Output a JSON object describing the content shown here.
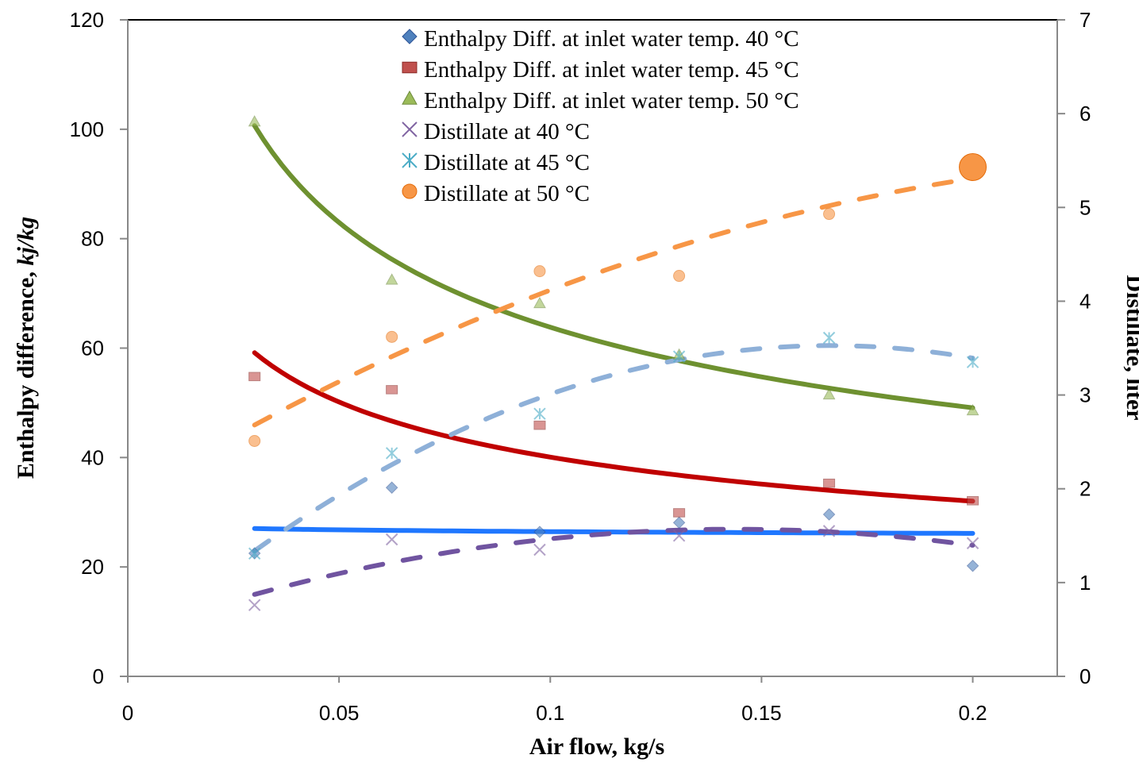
{
  "chart_data": {
    "type": "scatter",
    "title": "",
    "xlabel": "Air flow, kg/s",
    "ylabel_left_main": "Enthalpy difference, ",
    "ylabel_left_unit": "kj/kg",
    "ylabel_right": "Distillate, liter",
    "xlim": [
      0,
      0.22
    ],
    "ylim_left": [
      0,
      120
    ],
    "ylim_right": [
      0,
      7
    ],
    "x_ticks": [
      "0",
      "0.05",
      "0.1",
      "0.15",
      "0.2"
    ],
    "x_tick_values": [
      0,
      0.05,
      0.1,
      0.15,
      0.2
    ],
    "y_left_ticks": [
      "0",
      "20",
      "40",
      "60",
      "80",
      "100",
      "120"
    ],
    "y_right_ticks": [
      "0",
      "1",
      "2",
      "3",
      "4",
      "5",
      "6",
      "7"
    ],
    "grid": false,
    "legend_placement": "top-center",
    "x": [
      0.03,
      0.0625,
      0.0975,
      0.1305,
      0.166,
      0.2
    ],
    "series": [
      {
        "name": "Enthalpy Diff. at inlet water temp. 40 °C",
        "axis": "left",
        "marker": "diamond",
        "color": "#4f81bd",
        "trend": "power",
        "trend_color": "#1f77ff",
        "trend_dash": false,
        "values": [
          22.5,
          34.5,
          26.4,
          28.1,
          29.6,
          20.2
        ]
      },
      {
        "name": "Enthalpy Diff. at inlet water temp. 45 °C",
        "axis": "left",
        "marker": "square",
        "color": "#c0504d",
        "trend": "power",
        "trend_color": "#c00000",
        "trend_dash": false,
        "values": [
          54.8,
          52.4,
          45.9,
          29.9,
          35.3,
          32.1
        ]
      },
      {
        "name": "Enthalpy Diff. at inlet water temp. 50 °C",
        "axis": "left",
        "marker": "triangle",
        "color": "#9bbb59",
        "trend": "power",
        "trend_color": "#6e9130",
        "trend_dash": false,
        "values": [
          101.4,
          72.5,
          68.2,
          58.8,
          51.5,
          48.6
        ]
      },
      {
        "name": "Distillate at 40 °C",
        "axis": "right",
        "marker": "x",
        "color": "#8064a2",
        "trend": "polynomial",
        "trend_color": "#7054a0",
        "trend_dash": true,
        "values": [
          0.76,
          1.46,
          1.35,
          1.5,
          1.55,
          1.42
        ]
      },
      {
        "name": "Distillate at 45 °C",
        "axis": "right",
        "marker": "star",
        "color": "#4bacc6",
        "trend": "polynomial",
        "trend_color": "#8eb0d8",
        "trend_dash": true,
        "values": [
          1.31,
          2.38,
          2.8,
          3.41,
          3.61,
          3.35
        ]
      },
      {
        "name": "Distillate at 50 °C",
        "axis": "right",
        "marker": "circle",
        "color": "#f79646",
        "trend": "polynomial",
        "trend_color": "#f79646",
        "trend_dash": true,
        "values": [
          2.51,
          3.62,
          4.32,
          4.27,
          4.93,
          5.43
        ]
      }
    ]
  }
}
